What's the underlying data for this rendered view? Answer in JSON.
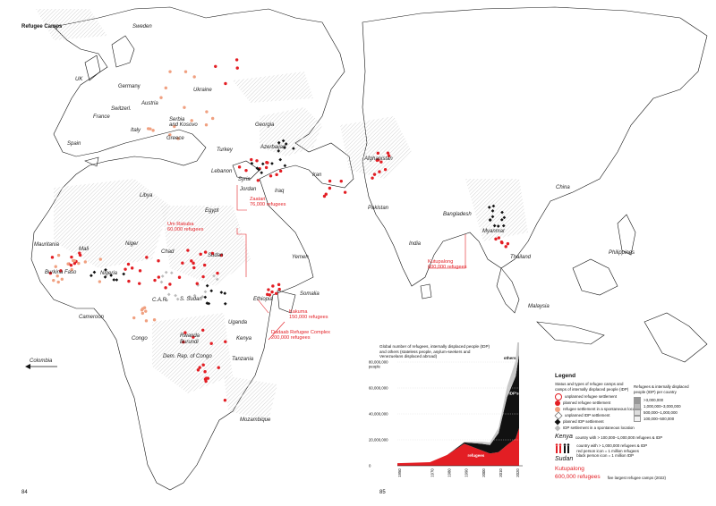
{
  "page_title": "Refugee Camps",
  "page_numbers": {
    "left": "84",
    "right": "85"
  },
  "countries": {
    "sweden": "Sweden",
    "uk": "UK",
    "germany": "Germany",
    "austria": "Austria",
    "ukraine": "Ukraine",
    "france": "France",
    "switzerl": "Switzerl.",
    "serbia": "Serbia\nand Kosovo",
    "georgia": "Georgia",
    "spain": "Spain",
    "italy": "Italy",
    "greece": "Greece",
    "azerbaijan": "Azerbaijan",
    "turkey": "Turkey",
    "lebanon": "Lebanon",
    "syria": "Syria",
    "jordan": "Jordan",
    "iraq": "Iraq",
    "iran": "Iran",
    "afghanistan": "Afghanistan",
    "pakistan": "Pakistan",
    "libya": "Libya",
    "egypt": "Egypt",
    "mauritania": "Mauritania",
    "mali": "Mali",
    "niger": "Niger",
    "chad": "Chad",
    "sudan": "Sudan",
    "yemen": "Yemen",
    "burkina": "Burkina Faso",
    "nigeria": "Nigeria",
    "car": "C.A.R.",
    "ssudan": "S. Sudan",
    "ethiopia": "Ethiopia",
    "somalia": "Somalia",
    "cameroon": "Cameroon",
    "uganda": "Uganda",
    "rwanda": "Rwanda",
    "burundi": "Burundi",
    "kenya": "Kenya",
    "congo": "Congo",
    "drc": "Dem. Rep. of Congo",
    "tanzania": "Tanzania",
    "mozambique": "Mozambique",
    "india": "India",
    "bangladesh": "Bangladesh",
    "myanmar": "Myanmar",
    "thailand": "Thailand",
    "china": "China",
    "philippines": "Philippines",
    "malaysia": "Malaysia",
    "colombia": "Colombia"
  },
  "callouts": [
    {
      "name": "Zaatari",
      "label": "Zaatari\n76,000 refugees"
    },
    {
      "name": "Um Rakuba",
      "label": "Um Rakuba\n60,000 refugees"
    },
    {
      "name": "Kakuma",
      "label": "Kakuma\n150,000 refugees"
    },
    {
      "name": "Dadaab",
      "label": "Dadaab Refugee Complex\n200,000 refugees"
    },
    {
      "name": "Kutupalong",
      "label": "Kutupalong\n600,000 refugees"
    }
  ],
  "colors": {
    "refugee_red": "#e31e24",
    "unplanned_salmon": "#f0a080",
    "idp_black": "#111111",
    "grey_idp": "#bbbbbb",
    "hatch": "#cfcfcf"
  },
  "chart_title": "Global number of refugees, internally displaced people (IDP)\nand others (stateless people, asylum-seekers and\nVenezuelans displaced abroad)",
  "chart_data": {
    "type": "area",
    "x": [
      1951,
      1960,
      1970,
      1980,
      1990,
      2000,
      2005,
      2010,
      2015,
      2020,
      2022
    ],
    "series": [
      {
        "name": "refugees",
        "values": [
          2000000,
          2300000,
          2800000,
          8400000,
          17000000,
          12000000,
          9500000,
          10500000,
          16000000,
          21000000,
          29000000
        ]
      },
      {
        "name": "IDP's",
        "values": [
          0,
          0,
          0,
          0,
          1000000,
          5000000,
          6500000,
          14700000,
          37000000,
          48000000,
          57000000
        ]
      },
      {
        "name": "others",
        "values": [
          0,
          0,
          0,
          0,
          500000,
          1500000,
          2000000,
          4000000,
          8000000,
          12000000,
          22000000
        ]
      }
    ],
    "y_ticks": [
      "80,000,000\npeople",
      "60,000,000",
      "40,000,000",
      "20,000,000",
      "0"
    ],
    "x_ticks": [
      "1950",
      "1970",
      "1980",
      "1990",
      "2000",
      "2010",
      "2020"
    ],
    "ylim": [
      0,
      80000000
    ]
  },
  "legend": {
    "title": "Legend",
    "left_header": "Status and types of refugee camps and\ncamps of internally displaced people (IDP)",
    "items": [
      "unplanned refugee settlement",
      "planned refugee settlement",
      "refugee settlement in a spontaneous location",
      "unplanned IDP settlement",
      "planned IDP settlement",
      "IDP settlement in a spontaneous location"
    ],
    "right_header": "Refugees & internally displaced\npeople (IDP) per country",
    "scale": [
      ">3,000,000",
      "1,000,000–3,000,000",
      "500,000–1,000,000",
      "100,000–500,000"
    ],
    "country_note_label": "Kenya",
    "country_note": "country with > 100,000–1,000,000 refugees & IDP",
    "sudan_label": "Sudan",
    "sudan_note": "country with > 1,000,000 refugees & IDP\nred person icon = 1 million refugees\nblack person icon = 1 million IDP",
    "camp_label": "Kutupalong\n600,000 refugees",
    "camp_note": "five largest refugee camps (2022)"
  }
}
